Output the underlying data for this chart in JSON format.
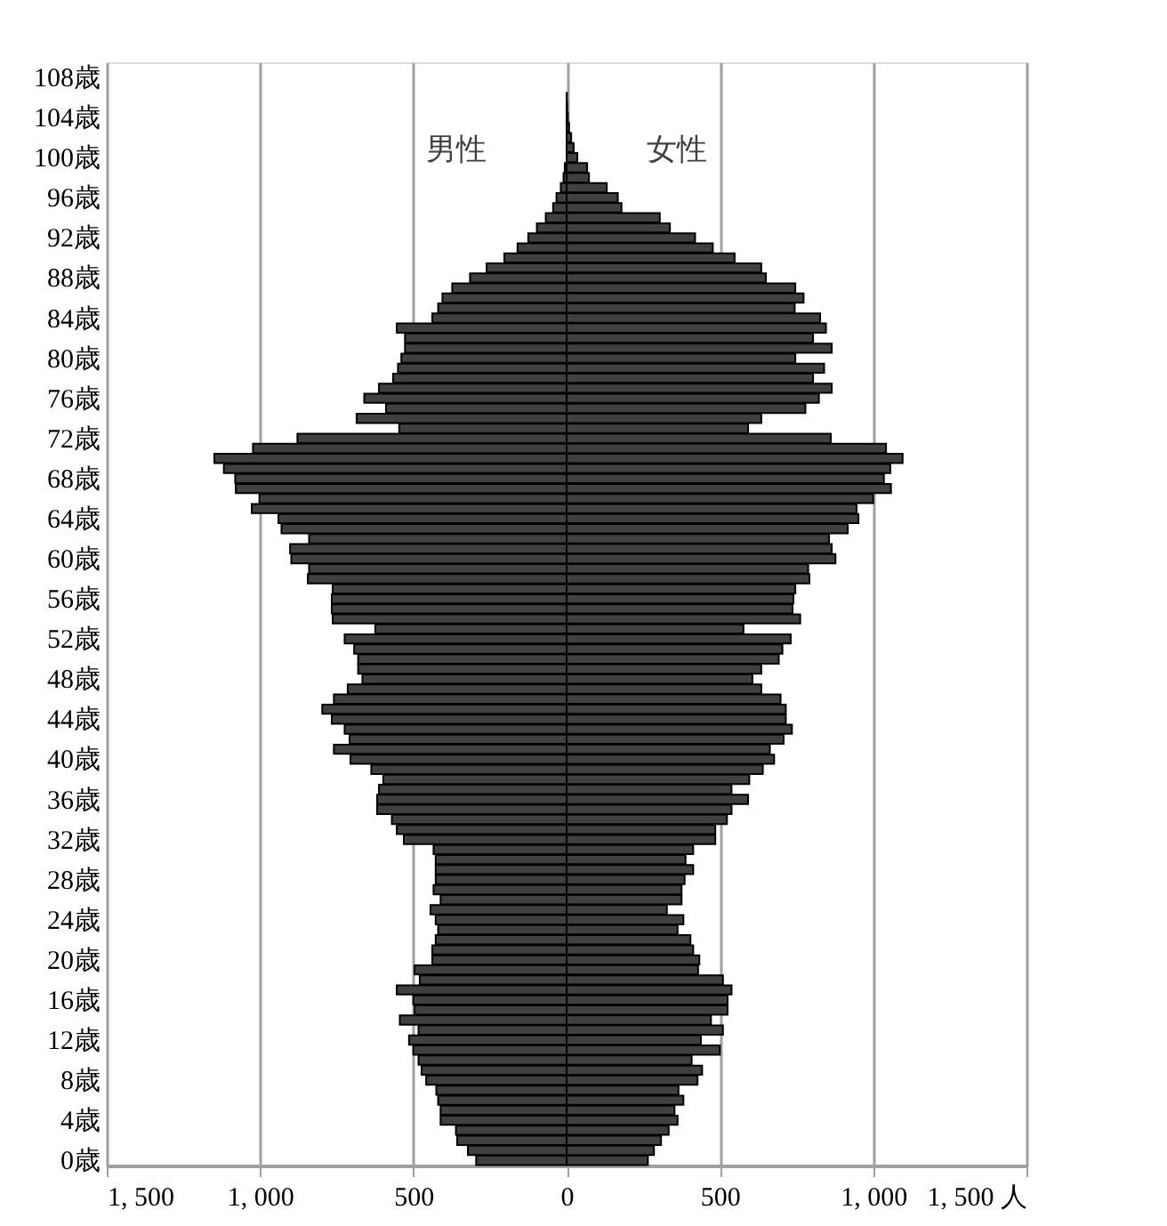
{
  "chart_data": {
    "type": "bar",
    "orientation": "horizontal",
    "stacked": true,
    "categories": [
      null,
      "108歳",
      null,
      null,
      null,
      "104歳",
      null,
      null,
      null,
      "100歳",
      null,
      null,
      null,
      "96歳",
      null,
      null,
      null,
      "92歳",
      null,
      null,
      null,
      "88歳",
      null,
      null,
      null,
      "84歳",
      null,
      null,
      null,
      "80歳",
      null,
      null,
      null,
      "76歳",
      null,
      null,
      null,
      "72歳",
      null,
      null,
      null,
      "68歳",
      null,
      null,
      null,
      "64歳",
      null,
      null,
      null,
      "60歳",
      null,
      null,
      null,
      "56歳",
      null,
      null,
      null,
      "52歳",
      null,
      null,
      null,
      "48歳",
      null,
      null,
      null,
      "44歳",
      null,
      null,
      null,
      "40歳",
      null,
      null,
      null,
      "36歳",
      null,
      null,
      null,
      "32歳",
      null,
      null,
      null,
      "28歳",
      null,
      null,
      null,
      "24歳",
      null,
      null,
      null,
      "20歳",
      null,
      null,
      null,
      "16歳",
      null,
      null,
      null,
      "12歳",
      null,
      null,
      null,
      "8歳",
      null,
      null,
      null,
      "4歳",
      null,
      null,
      null,
      "0歳"
    ],
    "series": [
      {
        "name": "男性",
        "color": "#404040",
        "values": [
          0,
          0,
          0,
          0,
          0,
          0,
          null,
          null,
          null,
          null,
          -6,
          -10,
          -19,
          -33,
          -44,
          -68,
          -97,
          -125,
          -160,
          -203,
          -261,
          -315,
          -373,
          -405,
          -419,
          -438,
          -554,
          -527,
          -527,
          -539,
          -550,
          -566,
          -612,
          -660,
          -589,
          -685,
          -546,
          -878,
          -1023,
          -1149,
          -1118,
          -1081,
          -1079,
          -1002,
          -1027,
          -940,
          -930,
          -840,
          -902,
          -898,
          -840,
          -844,
          -763,
          -766,
          -766,
          -763,
          -624,
          -724,
          -693,
          -680,
          -680,
          -666,
          -714,
          -759,
          -797,
          -766,
          -724,
          -708,
          -759,
          -705,
          -637,
          -598,
          -612,
          -618,
          -618,
          -570,
          -554,
          -531,
          -434,
          -427,
          -427,
          -427,
          -434,
          -411,
          -444,
          -427,
          -419,
          -427,
          -438,
          -438,
          -496,
          -479,
          -554,
          -500,
          -496,
          -544,
          -483,
          -514,
          -500,
          -483,
          -473,
          -458,
          -425,
          -419,
          -411,
          -411,
          -361,
          -357,
          -322,
          -295
        ]
      },
      {
        "name": "女性",
        "color": "#404040",
        "values": [
          0,
          0,
          0,
          1,
          2,
          4,
          8,
          15,
          23,
          35,
          67,
          73,
          131,
          167,
          179,
          304,
          337,
          419,
          477,
          548,
          635,
          650,
          746,
          773,
          744,
          827,
          846,
          804,
          865,
          746,
          840,
          804,
          865,
          823,
          779,
          635,
          592,
          862,
          1042,
          1096,
          1056,
          1035,
          1058,
          1000,
          946,
          952,
          917,
          856,
          865,
          877,
          788,
          792,
          746,
          740,
          737,
          762,
          577,
          731,
          704,
          692,
          635,
          606,
          635,
          698,
          715,
          715,
          735,
          708,
          663,
          677,
          640,
          596,
          538,
          592,
          538,
          523,
          485,
          485,
          413,
          388,
          413,
          385,
          375,
          375,
          327,
          381,
          362,
          404,
          413,
          433,
          429,
          510,
          538,
          525,
          525,
          471,
          510,
          438,
          500,
          408,
          442,
          427,
          365,
          381,
          352,
          362,
          333,
          308,
          285,
          265
        ]
      }
    ],
    "xlim": [
      -1500,
      1500
    ],
    "xticks": [
      {
        "value": -1500,
        "label": "1, 500"
      },
      {
        "value": -1000,
        "label": "1, 000"
      },
      {
        "value": -500,
        "label": "500"
      },
      0,
      500,
      {
        "value": 1000,
        "label": "1, 000"
      },
      {
        "value": 1500,
        "label": "1, 500 人"
      }
    ],
    "grid": "x"
  }
}
